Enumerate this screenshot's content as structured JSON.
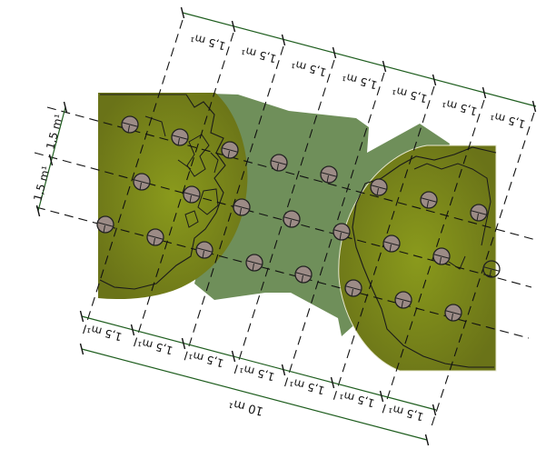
{
  "diagram": {
    "top_dimension_labels": [
      "1,5 m¹",
      "1,5 m¹",
      "1,5 m¹",
      "1,5 m¹",
      "1,5 m¹",
      "1,5 m¹",
      "1,5 m¹"
    ],
    "bottom_dimension_labels": [
      "1,5 m¹",
      "1,5 m¹",
      "1,5 m¹",
      "1,5 m¹",
      "1,5 m¹",
      "1,5 m¹",
      "1,5 m¹"
    ],
    "left_dimension_labels": [
      "1,5 m¹",
      "1,5 m¹"
    ],
    "total_length_label": "10 m¹",
    "colors": {
      "dimension_line": "#1f5e1f",
      "grid_line": "#111111",
      "olive_area": "#7a8a1e",
      "green_area": "#6f8f5a",
      "marker_fill": "#9c8b86",
      "marker_stroke": "#222222",
      "contour": "#1a1a1a"
    }
  }
}
